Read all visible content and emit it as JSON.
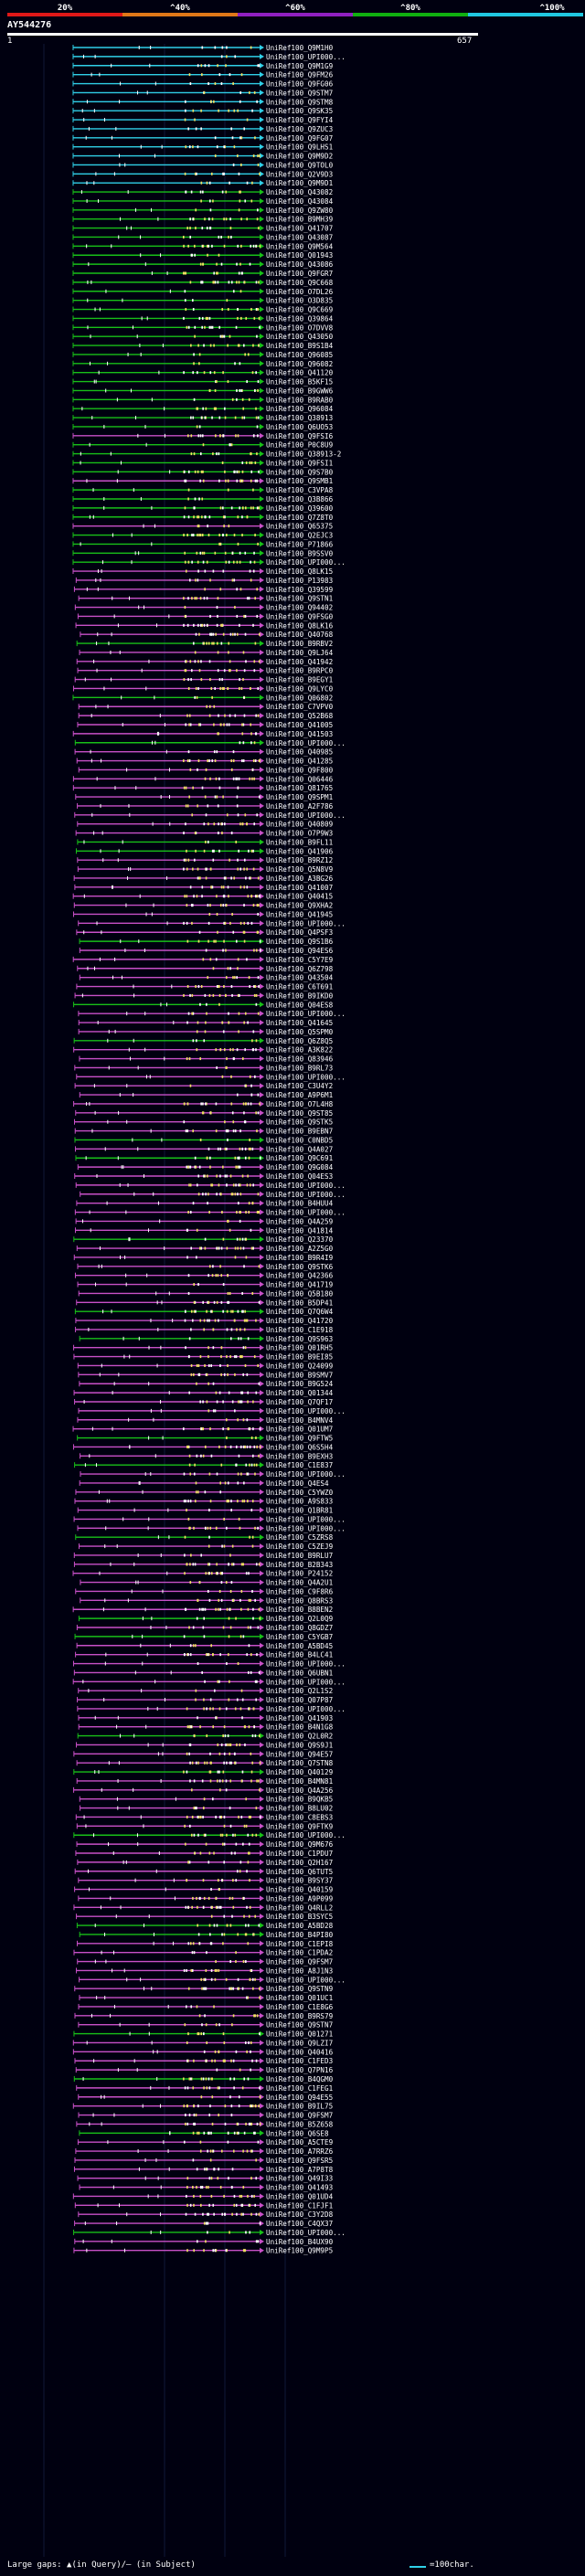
{
  "scale": {
    "labels": [
      "20%",
      "^40%",
      "^60%",
      "^80%",
      "^100%"
    ],
    "colors": [
      "#e01818",
      "#e07818",
      "#9020c0",
      "#10b010",
      "#20c8e0"
    ]
  },
  "query": {
    "id": "AY544276",
    "start": "1",
    "end": "657"
  },
  "colors": {
    "cyan": "#30d0e8",
    "green": "#18c018",
    "magenta": "#c850c8",
    "yellow": "#f0e060",
    "white": "#ffffff",
    "background": "#000010"
  },
  "hits": [
    "UniRef100_Q9M1H0",
    "UniRef100_UPI000...",
    "UniRef100_Q9M1G9",
    "UniRef100_Q9FM26",
    "UniRef100_Q9FG06",
    "UniRef100_Q9STM7",
    "UniRef100_Q9STM8",
    "UniRef100_Q9SK35",
    "UniRef100_Q9FYI4",
    "UniRef100_Q9ZUC3",
    "UniRef100_Q9FG07",
    "UniRef100_Q9LHS1",
    "UniRef100_Q9M9D2",
    "UniRef100_Q9TOL0",
    "UniRef100_Q2V9D3",
    "UniRef100_Q9M9D1",
    "UniRef100_Q43082",
    "UniRef100_Q43084",
    "UniRef100_Q9ZW80",
    "UniRef100_B9MH39",
    "UniRef100_Q41707",
    "UniRef100_Q43087",
    "UniRef100_Q9M564",
    "UniRef100_Q01943",
    "UniRef100_Q43086",
    "UniRef100_Q9FGR7",
    "UniRef100_Q9C668",
    "UniRef100_O7DL26",
    "UniRef100_O3D835",
    "UniRef100_Q9C669",
    "UniRef100_Q39864",
    "UniRef100_O7DVV8",
    "UniRef100_Q43050",
    "UniRef100_B9S1B4",
    "UniRef100_Q96085",
    "UniRef100_Q96082",
    "UniRef100_Q41120",
    "UniRef100_B5KF15",
    "UniRef100_B9GWW6",
    "UniRef100_B9RAB0",
    "UniRef100_Q96084",
    "UniRef100_Q38913",
    "UniRef100_Q6UO53",
    "UniRef100_Q9FSI6",
    "UniRef100_P0C8U9",
    "UniRef100_Q38913-2",
    "UniRef100_Q9FSI1",
    "UniRef100_Q9S7B0",
    "UniRef100_Q9SMB1",
    "UniRef100_C3VPA8",
    "UniRef100_Q3B866",
    "UniRef100_Q39600",
    "UniRef100_Q7Z8T0",
    "UniRef100_Q65375",
    "UniRef100_Q2EJC3",
    "UniRef100_P71866",
    "UniRef100_B9SSV0",
    "UniRef100_UPI000...",
    "UniRef100_Q8LK15",
    "UniRef100_P13983",
    "UniRef100_Q39599",
    "UniRef100_Q9STN1",
    "UniRef100_Q94402",
    "UniRef100_Q9FSG0",
    "UniRef100_Q8LK16",
    "UniRef100_Q40768",
    "UniRef100_B9RBV2",
    "UniRef100_Q9LJ64",
    "UniRef100_Q41942",
    "UniRef100_B9RPC0",
    "UniRef100_B9EGY1",
    "UniRef100_Q9LYC0",
    "UniRef100_Q06802",
    "UniRef100_C7VPV0",
    "UniRef100_Q52B68",
    "UniRef100_Q41005",
    "UniRef100_Q41503",
    "UniRef100_UPI000...",
    "UniRef100_Q40985",
    "UniRef100_Q41285",
    "UniRef100_Q9F800",
    "UniRef100_Q06446",
    "UniRef100_Q81765",
    "UniRef100_Q9SPM1",
    "UniRef100_A2F786",
    "UniRef100_UPI000...",
    "UniRef100_Q40809",
    "UniRef100_O7P9W3",
    "UniRef100_B9FL11",
    "UniRef100_Q41906",
    "UniRef100_B9RZ12",
    "UniRef100_Q5N8V9",
    "UniRef100_A3BG26",
    "UniRef100_Q41007",
    "UniRef100_Q40415",
    "UniRef100_Q9XHA2",
    "UniRef100_Q41945",
    "UniRef100_UPI000...",
    "UniRef100_Q4PSF3",
    "UniRef100_Q9S1B6",
    "UniRef100_Q94ES6",
    "UniRef100_C5Y7E9",
    "UniRef100_Q6Z798",
    "UniRef100_Q43504",
    "UniRef100_C6T691",
    "UniRef100_B9IKD0",
    "UniRef100_Q04ES8",
    "UniRef100_UPI000...",
    "UniRef100_Q41645",
    "UniRef100_Q5SPM0",
    "UniRef100_Q6Z8Q5",
    "UniRef100_A3K822",
    "UniRef100_Q83946",
    "UniRef100_B9RL73",
    "UniRef100_UPI000...",
    "UniRef100_C3U4Y2",
    "UniRef100_A9P6M1",
    "UniRef100_O7L4H8",
    "UniRef100_Q9ST85",
    "UniRef100_Q9STK5",
    "UniRef100_B9EBN7",
    "UniRef100_C0NBD5",
    "UniRef100_Q4A027",
    "UniRef100_Q9C691",
    "UniRef100_Q9G084",
    "UniRef100_Q04ES3",
    "UniRef100_UPI000...",
    "UniRef100_UPI000...",
    "UniRef100_B4HUU4",
    "UniRef100_UPI000...",
    "UniRef100_Q4A259",
    "UniRef100_Q41814",
    "UniRef100_Q23370",
    "UniRef100_A2Z5G0",
    "UniRef100_B9R4I9",
    "UniRef100_Q9STK6",
    "UniRef100_Q42366",
    "UniRef100_Q41719",
    "UniRef100_Q5B180",
    "UniRef100_B5DP41",
    "UniRef100_Q7Q6W4",
    "UniRef100_Q41720",
    "UniRef100_C1E918",
    "UniRef100_Q9S963",
    "UniRef100_Q01RH5",
    "UniRef100_B9EI85",
    "UniRef100_Q24099",
    "UniRef100_B9SMV7",
    "UniRef100_B9G524",
    "UniRef100_Q01344",
    "UniRef100_Q7QF17",
    "UniRef100_UPI000...",
    "UniRef100_B4MNV4",
    "UniRef100_Q01UM7",
    "UniRef100_Q9FTW5",
    "UniRef100_Q6S5H4",
    "UniRef100_B9EXH3",
    "UniRef100_C1E837",
    "UniRef100_UPI000...",
    "UniRef100_Q4ES4",
    "UniRef100_C5YWZ0",
    "UniRef100_A9S833",
    "UniRef100_Q1BR81",
    "UniRef100_UPI000...",
    "UniRef100_UPI000...",
    "UniRef100_C5ZRS8",
    "UniRef100_C5ZEJ9",
    "UniRef100_B9RLU7",
    "UniRef100_B2B343",
    "UniRef100_P24152",
    "UniRef100_Q4A2U1",
    "UniRef100_C9F8R6",
    "UniRef100_Q8BRS3",
    "UniRef100_B8BEN2",
    "UniRef100_Q2L0Q9",
    "UniRef100_Q8GDZ7",
    "UniRef100_C5YGB7",
    "UniRef100_A5BD45",
    "UniRef100_B4LC41",
    "UniRef100_UPI000...",
    "UniRef100_Q6UBN1",
    "UniRef100_UPI000...",
    "UniRef100_Q2L1S2",
    "UniRef100_Q07P87",
    "UniRef100_UPI000...",
    "UniRef100_Q41903",
    "UniRef100_B4N1G8",
    "UniRef100_Q2L0R2",
    "UniRef100_Q9S9J1",
    "UniRef100_Q94E57",
    "UniRef100_Q7STN8",
    "UniRef100_Q40129",
    "UniRef100_B4MN81",
    "UniRef100_Q4A256",
    "UniRef100_B9QKB5",
    "UniRef100_B8LU02",
    "UniRef100_C8EBS3",
    "UniRef100_Q9FTK9",
    "UniRef100_UPI000...",
    "UniRef100_Q9M676",
    "UniRef100_C1PDU7",
    "UniRef100_Q2H167",
    "UniRef100_Q6TUT5",
    "UniRef100_B9SY37",
    "UniRef100_Q40159",
    "UniRef100_A9P099",
    "UniRef100_Q4RLL2",
    "UniRef100_B3SYC5",
    "UniRef100_A5BD28",
    "UniRef100_B4PI80",
    "UniRef100_C1EPI8",
    "UniRef100_C1PDA2",
    "UniRef100_Q9FSM7",
    "UniRef100_A8J1N3",
    "UniRef100_UPI000...",
    "UniRef100_Q9STN9",
    "UniRef100_Q01UC1",
    "UniRef100_C1E8G6",
    "UniRef100_B9RS79",
    "UniRef100_Q9STN7",
    "UniRef100_Q01271",
    "UniRef100_Q9LZI7",
    "UniRef100_Q40416",
    "UniRef100_C1FED3",
    "UniRef100_Q7PN16",
    "UniRef100_B4QGM0",
    "UniRef100_C1FEG1",
    "UniRef100_Q94E55",
    "UniRef100_B9IL75",
    "UniRef100_Q9FSM7",
    "UniRef100_B5Z658",
    "UniRef100_Q6SE8",
    "UniRef100_A5CTE9",
    "UniRef100_A7RRZ6",
    "UniRef100_Q9FSR5",
    "UniRef100_A7P8T8",
    "UniRef100_Q49I33",
    "UniRef100_Q41493",
    "UniRef100_Q01UD4",
    "UniRef100_C1FJF1",
    "UniRef100_C3Y2D8",
    "UniRef100_C4QX37",
    "UniRef100_UPI000...",
    "UniRef100_B4UX90",
    "UniRef100_Q9M9P5"
  ],
  "footer": {
    "left": "Large gaps: ▲(in Query)/— (in Subject)",
    "right": "=100char."
  }
}
